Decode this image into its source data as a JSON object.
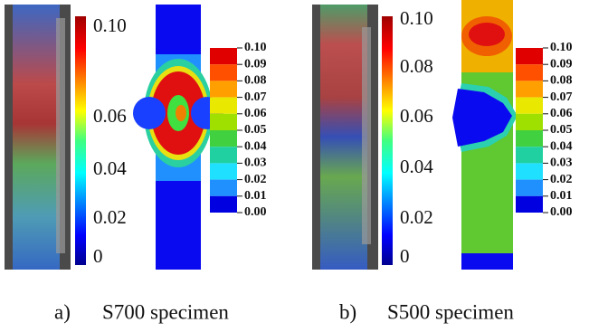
{
  "panels": [
    {
      "caption_label": "a)",
      "caption": "S700 specimen",
      "colorbar_ticks": [
        "0.10",
        "0.06",
        "0.04",
        "0.02",
        "0"
      ],
      "legend_labels": [
        "0.10",
        "0.09",
        "0.08",
        "0.07",
        "0.06",
        "0.05",
        "0.04",
        "0.03",
        "0.02",
        "0.01",
        "0.00"
      ]
    },
    {
      "caption_label": "b)",
      "caption": "S500 specimen",
      "colorbar_ticks": [
        "0.10",
        "0.08",
        "0.06",
        "0.04",
        "0.02",
        "0"
      ],
      "legend_labels": [
        "0.10",
        "0.09",
        "0.08",
        "0.07",
        "0.06",
        "0.05",
        "0.04",
        "0.03",
        "0.02",
        "0.01",
        "0.00"
      ]
    }
  ]
}
